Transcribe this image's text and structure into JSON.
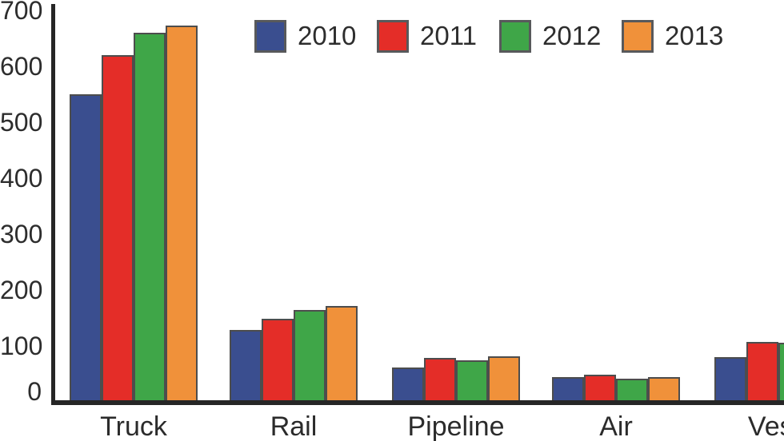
{
  "chart_data": {
    "type": "bar",
    "title": "",
    "xlabel": "",
    "ylabel": "",
    "categories": [
      "Truck",
      "Rail",
      "Pipeline",
      "Air",
      "Vessel"
    ],
    "displayed_category_labels": [
      "Truck",
      "Rail",
      "Pipeline",
      "Air",
      "Ves"
    ],
    "series": [
      {
        "name": "2010",
        "color": "#3A4E8F",
        "values": [
          550,
          128,
          62,
          45,
          80
        ]
      },
      {
        "name": "2011",
        "color": "#E42D28",
        "values": [
          620,
          148,
          79,
          48,
          107
        ]
      },
      {
        "name": "2012",
        "color": "#3FA648",
        "values": [
          660,
          165,
          74,
          42,
          106
        ]
      },
      {
        "name": "2013",
        "color": "#F0913A",
        "values": [
          673,
          172,
          81,
          44,
          null
        ]
      }
    ],
    "ylim": [
      0,
      700
    ],
    "yticks": [
      0,
      100,
      200,
      300,
      400,
      500,
      600,
      700
    ],
    "ytick_labels": [
      "0",
      "100",
      "200",
      "300",
      "400",
      "500",
      "600",
      "700"
    ],
    "grid": false,
    "legend_position": "top",
    "legend_entries": [
      "2010",
      "2011",
      "2012",
      "2013"
    ],
    "note": "Chart is clipped at the right edge: Vessel group shows only 2010, 2011 bars and a sliver of 2012; the 2013 Vessel bar and end of the word 'Vessel' are cut off."
  },
  "colors": {
    "series_2010": "#3A4E8F",
    "series_2011": "#E42D28",
    "series_2012": "#3FA648",
    "series_2013": "#F0913A",
    "bar_border": "#4d4d4d",
    "axis": "#262626",
    "text": "#2d2d2d",
    "background": "#ffffff"
  }
}
